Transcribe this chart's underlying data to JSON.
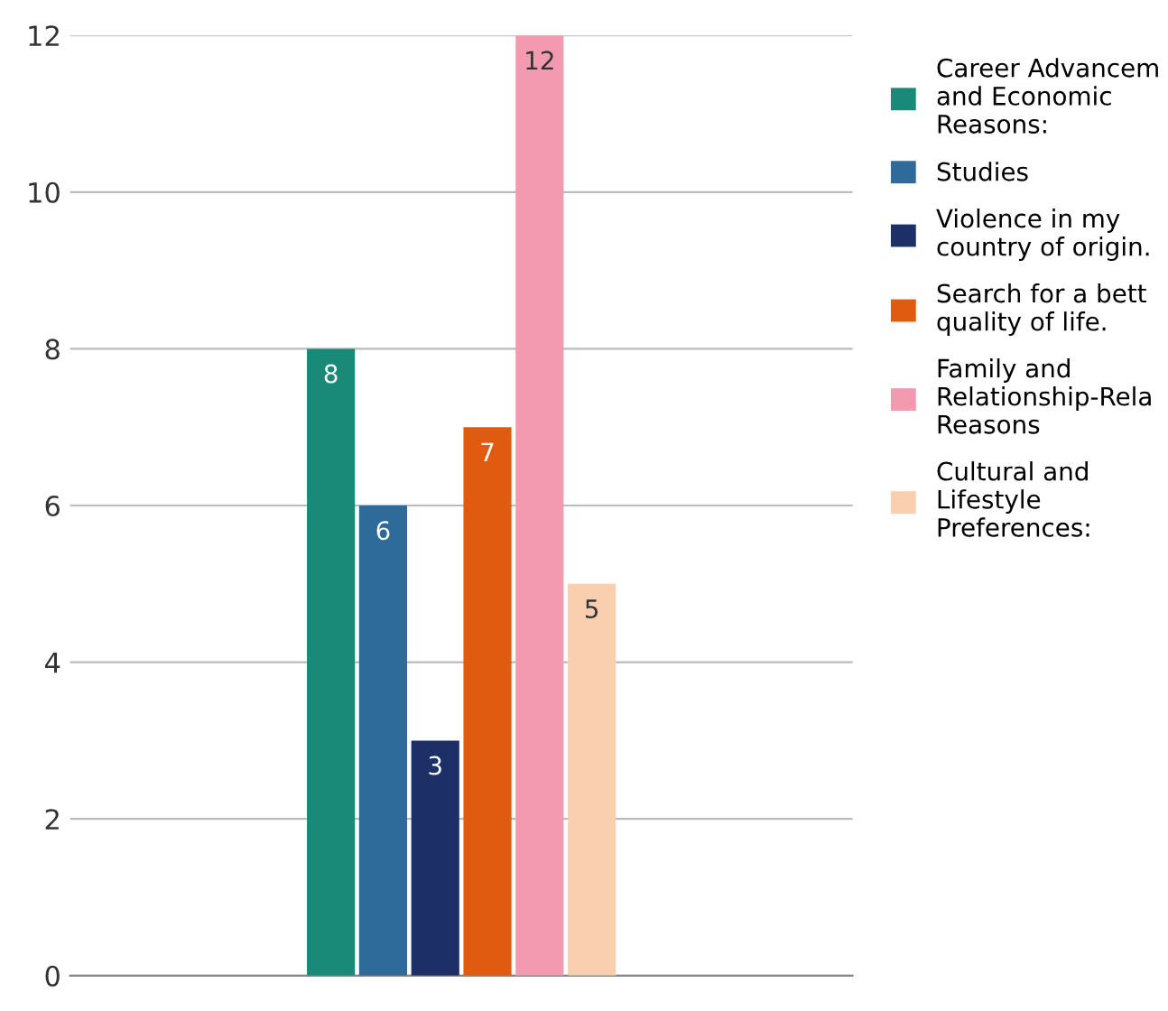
{
  "chart_data": {
    "type": "bar",
    "categories": [
      null
    ],
    "series": [
      {
        "name": "Career Advancem\nand Economic\nReasons:",
        "color": "#1a8a78",
        "values": [
          8
        ]
      },
      {
        "name": "Studies",
        "color": "#2e6a9a",
        "values": [
          6
        ]
      },
      {
        "name": "Violence in my\ncountry of origin.",
        "color": "#1c2f66",
        "values": [
          3
        ]
      },
      {
        "name": "Search for a bett\nquality of life.",
        "color": "#e05a10",
        "values": [
          7
        ]
      },
      {
        "name": "Family and\nRelationship-Rela\nReasons",
        "color": "#f49ab0",
        "values": [
          12
        ]
      },
      {
        "name": "Cultural and\nLifestyle\nPreferences:",
        "color": "#f9cfb0",
        "values": [
          5
        ]
      }
    ],
    "ylim": [
      0,
      12
    ],
    "yticks": [
      0,
      2,
      4,
      6,
      8,
      10,
      12
    ],
    "grid": "y",
    "legend": "top right",
    "data_labels": true
  }
}
